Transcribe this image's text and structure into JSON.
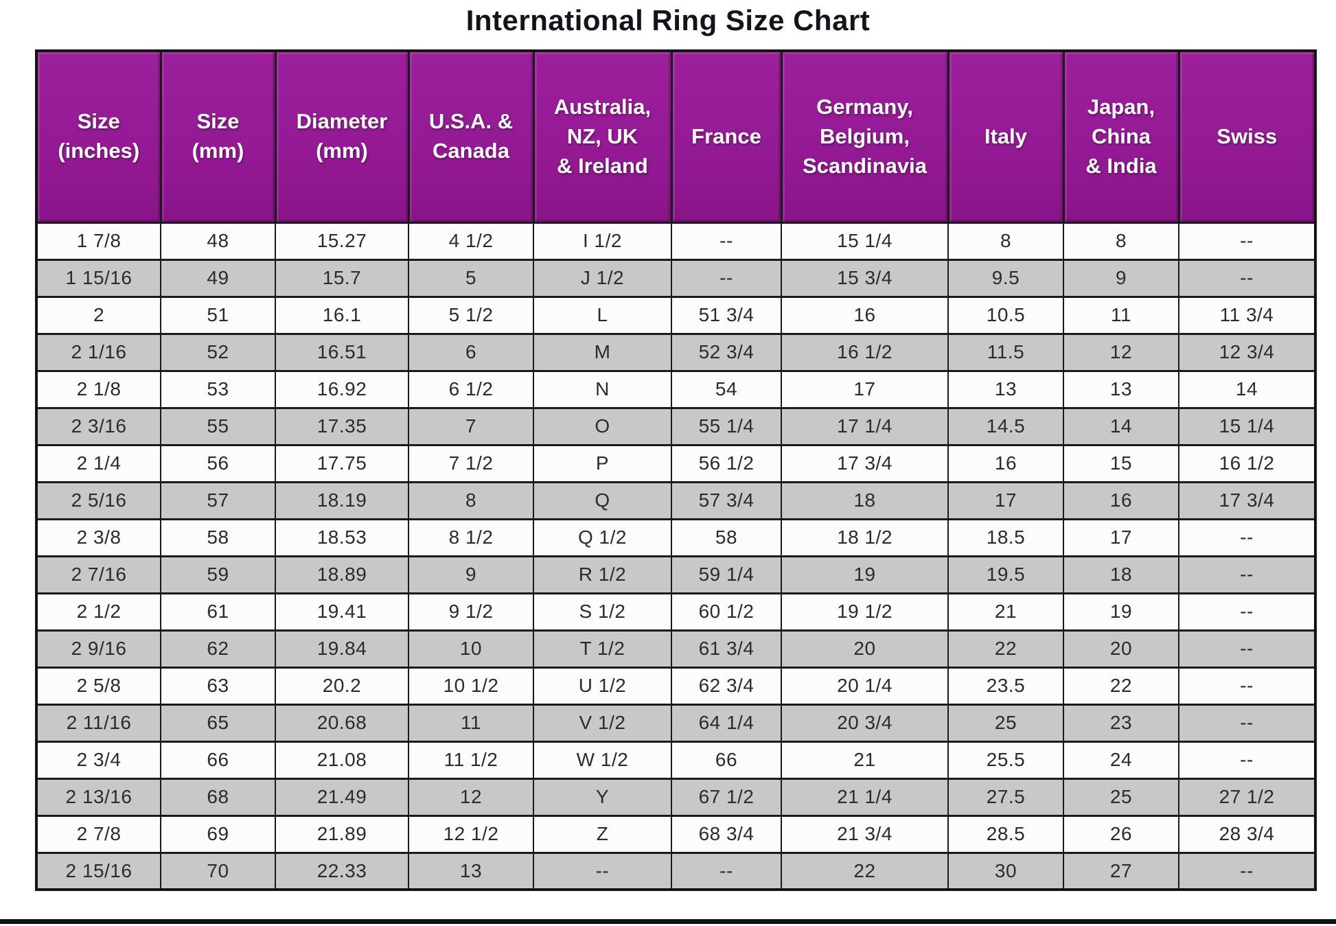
{
  "title": "International Ring Size Chart",
  "chart_data": {
    "type": "table",
    "title": "International Ring Size Chart",
    "columns": [
      "Size\n(inches)",
      "Size\n(mm)",
      "Diameter\n(mm)",
      "U.S.A. &\nCanada",
      "Australia,\nNZ, UK\n& Ireland",
      "France",
      "Germany,\nBelgium,\nScandinavia",
      "Italy",
      "Japan,\nChina\n& India",
      "Swiss"
    ],
    "rows": [
      [
        "1 7/8",
        "48",
        "15.27",
        "4 1/2",
        "I 1/2",
        "--",
        "15 1/4",
        "8",
        "8",
        "--"
      ],
      [
        "1 15/16",
        "49",
        "15.7",
        "5",
        "J 1/2",
        "--",
        "15 3/4",
        "9.5",
        "9",
        "--"
      ],
      [
        "2",
        "51",
        "16.1",
        "5 1/2",
        "L",
        "51 3/4",
        "16",
        "10.5",
        "11",
        "11 3/4"
      ],
      [
        "2 1/16",
        "52",
        "16.51",
        "6",
        "M",
        "52 3/4",
        "16 1/2",
        "11.5",
        "12",
        "12 3/4"
      ],
      [
        "2 1/8",
        "53",
        "16.92",
        "6 1/2",
        "N",
        "54",
        "17",
        "13",
        "13",
        "14"
      ],
      [
        "2 3/16",
        "55",
        "17.35",
        "7",
        "O",
        "55 1/4",
        "17 1/4",
        "14.5",
        "14",
        "15 1/4"
      ],
      [
        "2 1/4",
        "56",
        "17.75",
        "7 1/2",
        "P",
        "56 1/2",
        "17 3/4",
        "16",
        "15",
        "16 1/2"
      ],
      [
        "2 5/16",
        "57",
        "18.19",
        "8",
        "Q",
        "57 3/4",
        "18",
        "17",
        "16",
        "17 3/4"
      ],
      [
        "2 3/8",
        "58",
        "18.53",
        "8 1/2",
        "Q 1/2",
        "58",
        "18 1/2",
        "18.5",
        "17",
        "--"
      ],
      [
        "2 7/16",
        "59",
        "18.89",
        "9",
        "R 1/2",
        "59 1/4",
        "19",
        "19.5",
        "18",
        "--"
      ],
      [
        "2 1/2",
        "61",
        "19.41",
        "9 1/2",
        "S 1/2",
        "60 1/2",
        "19 1/2",
        "21",
        "19",
        "--"
      ],
      [
        "2 9/16",
        "62",
        "19.84",
        "10",
        "T 1/2",
        "61 3/4",
        "20",
        "22",
        "20",
        "--"
      ],
      [
        "2 5/8",
        "63",
        "20.2",
        "10 1/2",
        "U 1/2",
        "62 3/4",
        "20 1/4",
        "23.5",
        "22",
        "--"
      ],
      [
        "2 11/16",
        "65",
        "20.68",
        "11",
        "V 1/2",
        "64 1/4",
        "20 3/4",
        "25",
        "23",
        "--"
      ],
      [
        "2 3/4",
        "66",
        "21.08",
        "11 1/2",
        "W 1/2",
        "66",
        "21",
        "25.5",
        "24",
        "--"
      ],
      [
        "2 13/16",
        "68",
        "21.49",
        "12",
        "Y",
        "67 1/2",
        "21 1/4",
        "27.5",
        "25",
        "27 1/2"
      ],
      [
        "2 7/8",
        "69",
        "21.89",
        "12 1/2",
        "Z",
        "68 3/4",
        "21 3/4",
        "28.5",
        "26",
        "28 3/4"
      ],
      [
        "2 15/16",
        "70",
        "22.33",
        "13",
        "--",
        "--",
        "22",
        "30",
        "27",
        "--"
      ]
    ]
  }
}
